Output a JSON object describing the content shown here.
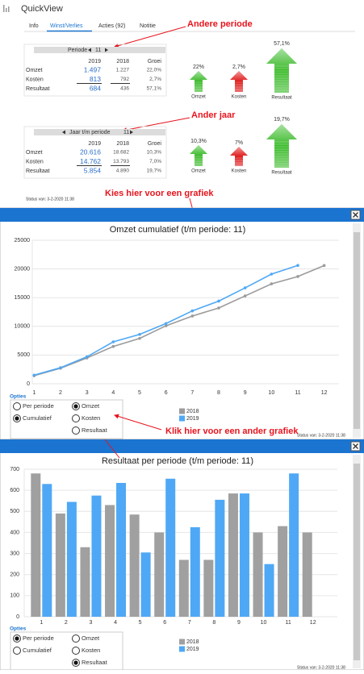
{
  "app_title": "QuickView",
  "tabs": [
    "Info",
    "Winst/Verlies",
    "Acties (92)",
    "Notitie"
  ],
  "active_tab": 1,
  "tables": [
    {
      "header": "Periode",
      "period": "11",
      "columns": [
        "2019",
        "2018",
        "Groei"
      ],
      "rows": [
        {
          "label": "Omzet",
          "values": [
            "1.497",
            "1.227",
            "22,0%"
          ]
        },
        {
          "label": "Kosten",
          "values": [
            "813",
            "792",
            "2,7%"
          ]
        },
        {
          "label": "Resultaat",
          "values": [
            "684",
            "436",
            "57,1%"
          ]
        }
      ],
      "arrows": [
        {
          "label": "22%",
          "name": "Omzet",
          "color": "#3dbb2c"
        },
        {
          "label": "2,7%",
          "name": "Kosten",
          "color": "#e01e1e"
        },
        {
          "label": "57,1%",
          "name": "Resultaat",
          "color": "#3dbb2c"
        }
      ]
    },
    {
      "header": "Jaar t/m periode",
      "period": "11",
      "columns": [
        "2019",
        "2018",
        "Groei"
      ],
      "rows": [
        {
          "label": "Omzet",
          "values": [
            "20.616",
            "18.682",
            "10,3%"
          ]
        },
        {
          "label": "Kosten",
          "values": [
            "14.762",
            "13.793",
            "7,0%"
          ]
        },
        {
          "label": "Resultaat",
          "values": [
            "5.854",
            "4.890",
            "19,7%"
          ]
        }
      ],
      "arrows": [
        {
          "label": "10,3%",
          "name": "Omzet",
          "color": "#3dbb2c"
        },
        {
          "label": "7%",
          "name": "Kosten",
          "color": "#e01e1e"
        },
        {
          "label": "19,7%",
          "name": "Resultaat",
          "color": "#3dbb2c"
        }
      ]
    }
  ],
  "annotations": [
    "Andere periode",
    "Ander jaar",
    "Kies hier voor een grafiek",
    "Klik hier voor een ander grafiek"
  ],
  "status": "Status van: 3-2-2020 11:38",
  "chart_data": [
    {
      "type": "line",
      "title": "Omzet cumulatief (t/m periode: 11)",
      "categories": [
        "1",
        "2",
        "3",
        "4",
        "5",
        "6",
        "7",
        "8",
        "9",
        "10",
        "11",
        "12"
      ],
      "series": [
        {
          "name": "2018",
          "color": "#9b9b9b",
          "values": [
            1400,
            2700,
            4500,
            6500,
            7900,
            10100,
            11800,
            13200,
            15300,
            17400,
            18682,
            20600
          ]
        },
        {
          "name": "2019",
          "color": "#4fa8f5",
          "values": [
            1500,
            2800,
            4700,
            7300,
            8600,
            10500,
            12700,
            14400,
            16700,
            19100,
            20616,
            null
          ]
        }
      ],
      "ylim": [
        0,
        25000
      ],
      "yticks": [
        0,
        5000,
        10000,
        15000,
        20000,
        25000
      ],
      "grid": true,
      "options": {
        "title": "Opties",
        "items": [
          {
            "label": "Per periode",
            "checked": false
          },
          {
            "label": "Cumulatief",
            "checked": true
          },
          {
            "label": "Omzet",
            "checked": true
          },
          {
            "label": "Kosten",
            "checked": false
          },
          {
            "label": "Resultaat",
            "checked": false
          }
        ]
      },
      "status": "Status van: 3-2-2020 11:38"
    },
    {
      "type": "bar",
      "title": "Resultaat per periode (t/m periode: 11)",
      "categories": [
        "1",
        "2",
        "3",
        "4",
        "5",
        "6",
        "7",
        "8",
        "9",
        "10",
        "11",
        "12"
      ],
      "series": [
        {
          "name": "2018",
          "color": "#a0a0a0",
          "values": [
            680,
            490,
            330,
            530,
            485,
            400,
            270,
            270,
            585,
            400,
            430,
            400
          ]
        },
        {
          "name": "2019",
          "color": "#4fa8f5",
          "values": [
            630,
            545,
            575,
            635,
            305,
            655,
            425,
            555,
            585,
            250,
            680,
            null
          ]
        }
      ],
      "ylim": [
        0,
        700
      ],
      "yticks": [
        0,
        100,
        200,
        300,
        400,
        500,
        600,
        700
      ],
      "grid": true,
      "options": {
        "title": "Opties",
        "items": [
          {
            "label": "Per periode",
            "checked": true
          },
          {
            "label": "Cumulatief",
            "checked": false
          },
          {
            "label": "Omzet",
            "checked": false
          },
          {
            "label": "Kosten",
            "checked": false
          },
          {
            "label": "Resultaat",
            "checked": true
          }
        ]
      },
      "status": "Status van: 3-2-2020 11:38"
    }
  ]
}
